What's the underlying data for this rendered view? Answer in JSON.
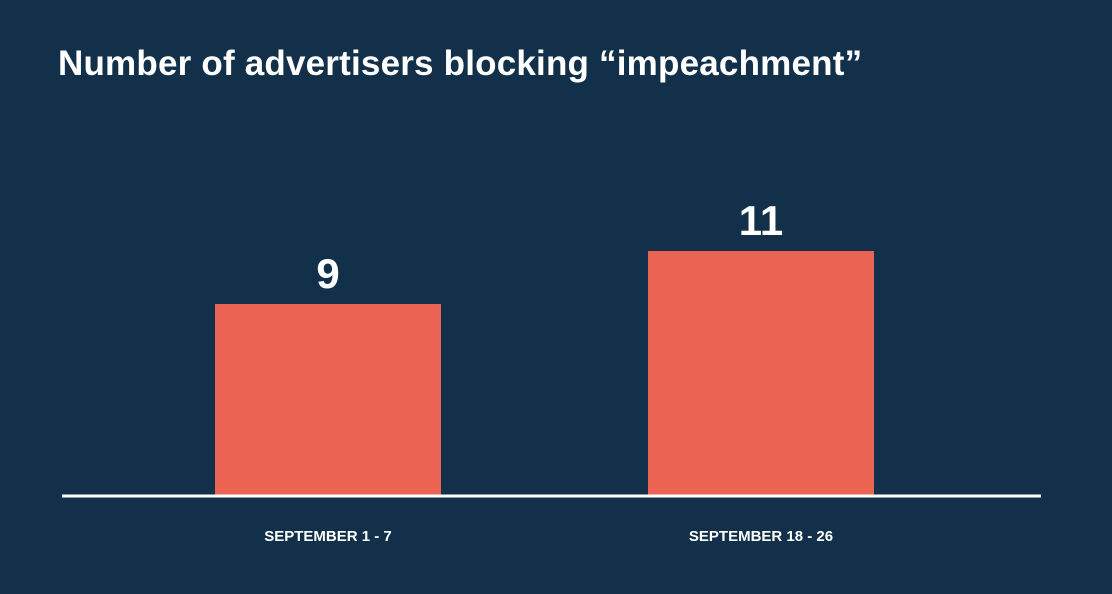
{
  "chart_data": {
    "type": "bar",
    "title": "Number of advertisers blocking “impeachment”",
    "categories": [
      "SEPTEMBER 1 - 7",
      "SEPTEMBER 18 - 26"
    ],
    "values": [
      9,
      11
    ],
    "data_labels": [
      "9",
      "11"
    ],
    "xlabel": "",
    "ylabel": "",
    "grid": false,
    "legend": "none",
    "colors": {
      "background": "#12304a",
      "bar": "#eb6353",
      "axis": "#ffffff",
      "text": "#ffffff"
    }
  }
}
